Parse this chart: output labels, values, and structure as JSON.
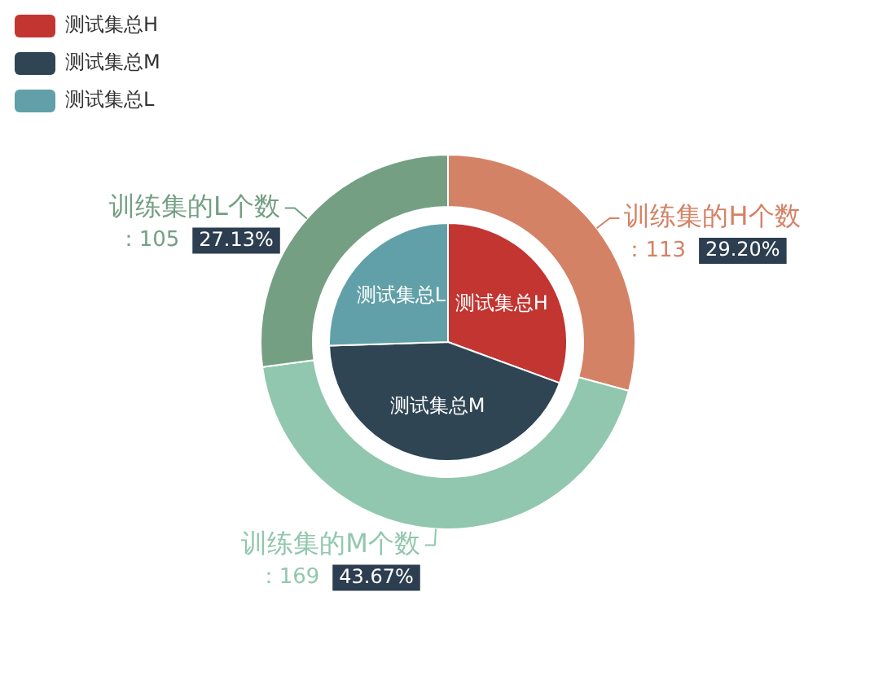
{
  "chart_data": {
    "type": "donut",
    "categories": [
      "测试集总H",
      "测试集总M",
      "测试集总L",
      "训练集的H个数",
      "训练集的M个数",
      "训练集的L个数"
    ],
    "colors": [
      "#c23531",
      "#2f4554",
      "#61a0a8",
      "#d48265",
      "#91c7ae",
      "#749f83"
    ],
    "series": [
      {
        "type": "donut",
        "values": [
          null,
          null,
          null,
          113,
          169,
          105
        ],
        "value_labels": [
          null,
          null,
          null,
          "：113 29.20%",
          "：169 43.67%",
          "：105 27.13%"
        ]
      },
      {
        "type": "pie",
        "values": [
          30.6,
          43.9,
          25.5,
          null,
          null,
          null
        ]
      }
    ],
    "legend": "top left"
  }
}
